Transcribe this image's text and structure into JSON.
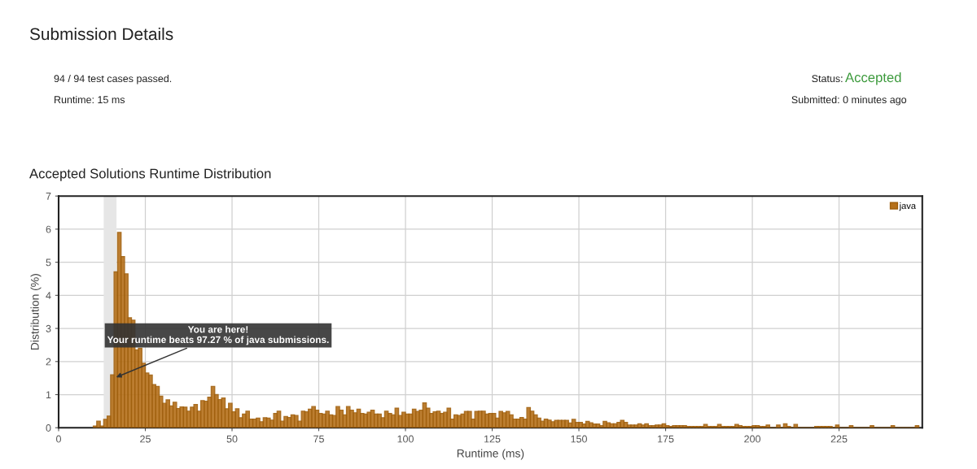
{
  "chart_data": {
    "type": "histogram",
    "title": "Accepted Solutions Runtime Distribution",
    "xlabel": "Runtime (ms)",
    "ylabel": "Distribution (%)",
    "annotations": [
      "Submission Details",
      "94 / 94 test cases passed.",
      "Runtime: 15 ms",
      "Status:",
      "Accepted",
      "Submitted: 0 minutes ago",
      {
        "text": "You are here!\nYour runtime beats 97.27 % of java submissions.",
        "x": 16,
        "y": 1.5
      }
    ],
    "bins": [
      10,
      11,
      12,
      13,
      14,
      15,
      16,
      17,
      18,
      19,
      20,
      21,
      22,
      23,
      24,
      25,
      26,
      27,
      28,
      29,
      30,
      31,
      32,
      33,
      34,
      35,
      36,
      37,
      38,
      39,
      40,
      41,
      42,
      43,
      44,
      45,
      46,
      47,
      48,
      49,
      50,
      51,
      52,
      53,
      54,
      55,
      56,
      57,
      58,
      59,
      60,
      61,
      62,
      63,
      64,
      65,
      66,
      67,
      68,
      69,
      70,
      71,
      72,
      73,
      74,
      75,
      76,
      77,
      78,
      79,
      80,
      81,
      82,
      83,
      84,
      85,
      86,
      87,
      88,
      89,
      90,
      91,
      92,
      93,
      94,
      95,
      96,
      97,
      98,
      99,
      100,
      101,
      102,
      103,
      104,
      105,
      106,
      107,
      108,
      109,
      110,
      111,
      112,
      113,
      114,
      115,
      116,
      117,
      118,
      119,
      120,
      121,
      122,
      123,
      124,
      125,
      126,
      127,
      128,
      129,
      130,
      131,
      132,
      133,
      134,
      135,
      136,
      137,
      138,
      139,
      140,
      141,
      142,
      143,
      144,
      145,
      146,
      147,
      148,
      149,
      150,
      151,
      152,
      153,
      154,
      155,
      156,
      157,
      158,
      159,
      160,
      161,
      162,
      163,
      164,
      165,
      166,
      167,
      168,
      169,
      170,
      171,
      172,
      173,
      174,
      175,
      176,
      177,
      178,
      179,
      180,
      181,
      182,
      183,
      184,
      185,
      186,
      187,
      188,
      189,
      190,
      191,
      192,
      193,
      194,
      195,
      196,
      197,
      198,
      199,
      200,
      201,
      202,
      203,
      204,
      205,
      206,
      207,
      208,
      209,
      210,
      211,
      212,
      213,
      214,
      215,
      216,
      217,
      218,
      219,
      220,
      221,
      222,
      223,
      224,
      225,
      226,
      227,
      228,
      229,
      230,
      231,
      232,
      233,
      234,
      235,
      236,
      237,
      238,
      239,
      240,
      241,
      242,
      243,
      244,
      245,
      246,
      247,
      248
    ],
    "series": [
      {
        "name": "java",
        "color": "#b5701a",
        "values": [
          0.05,
          0.2,
          0.05,
          0.25,
          0.35,
          1.6,
          4.71,
          5.9,
          5.17,
          4.65,
          3.32,
          3.25,
          2.35,
          2.4,
          1.95,
          1.65,
          1.59,
          1.3,
          1.25,
          0.95,
          0.74,
          0.84,
          0.66,
          0.77,
          0.58,
          0.63,
          0.62,
          0.5,
          0.62,
          0.7,
          0.5,
          0.82,
          0.8,
          0.92,
          1.25,
          1.0,
          0.85,
          0.9,
          0.57,
          0.74,
          0.48,
          0.57,
          0.3,
          0.41,
          0.5,
          0.26,
          0.26,
          0.29,
          0.18,
          0.3,
          0.29,
          0.23,
          0.43,
          0.5,
          0.2,
          0.34,
          0.31,
          0.39,
          0.37,
          0.2,
          0.5,
          0.48,
          0.56,
          0.64,
          0.53,
          0.43,
          0.41,
          0.5,
          0.39,
          0.37,
          0.64,
          0.53,
          0.39,
          0.64,
          0.53,
          0.45,
          0.56,
          0.43,
          0.41,
          0.47,
          0.53,
          0.41,
          0.41,
          0.3,
          0.5,
          0.43,
          0.39,
          0.59,
          0.37,
          0.47,
          0.41,
          0.41,
          0.56,
          0.49,
          0.53,
          0.75,
          0.59,
          0.43,
          0.48,
          0.5,
          0.43,
          0.47,
          0.59,
          0.26,
          0.39,
          0.37,
          0.41,
          0.49,
          0.49,
          0.26,
          0.49,
          0.5,
          0.5,
          0.41,
          0.43,
          0.43,
          0.29,
          0.49,
          0.45,
          0.49,
          0.39,
          0.26,
          0.26,
          0.31,
          0.26,
          0.61,
          0.5,
          0.39,
          0.29,
          0.2,
          0.26,
          0.23,
          0.18,
          0.22,
          0.22,
          0.22,
          0.22,
          0.14,
          0.25,
          0.16,
          0.16,
          0.11,
          0.19,
          0.15,
          0.11,
          0.11,
          0.06,
          0.19,
          0.15,
          0.12,
          0.12,
          0.16,
          0.22,
          0.16,
          0.08,
          0.08,
          0.08,
          0.12,
          0.08,
          0.12,
          0.06,
          0.06,
          0.08,
          0.08,
          0.12,
          0.06,
          0.04,
          0.06,
          0.06,
          0.06,
          0.06,
          0.04,
          0.04,
          0.04,
          0.04,
          0.04,
          0.1,
          0.04,
          0.04,
          0.04,
          0.1,
          0.04,
          0.04,
          0.04,
          0.04,
          0.1,
          0.06,
          0.04,
          0.04,
          0.04,
          0.06,
          0.06,
          0.04,
          0.04,
          0.08,
          0,
          0,
          0.08,
          0,
          0.12,
          0.04,
          0,
          0.1,
          0,
          0,
          0,
          0,
          0,
          0.04,
          0.04,
          0.04,
          0.04,
          0.04,
          0,
          0.08,
          0,
          0,
          0,
          0.06,
          0,
          0,
          0,
          0,
          0,
          0.06,
          0,
          0,
          0,
          0,
          0,
          0.06,
          0,
          0,
          0,
          0,
          0,
          0,
          0.06
        ]
      }
    ],
    "xlim": [
      0,
      249
    ],
    "xticks": [
      0,
      25,
      50,
      75,
      100,
      125,
      150,
      175,
      200,
      225
    ],
    "ylim": [
      0,
      7
    ],
    "yticks": [
      0,
      1,
      2,
      3,
      4,
      5,
      6,
      7
    ],
    "bands": [
      {
        "axis": "x",
        "from": 13,
        "to": 16.7,
        "color": "#e6e6e6"
      }
    ],
    "grid": true,
    "legend": "top right"
  }
}
